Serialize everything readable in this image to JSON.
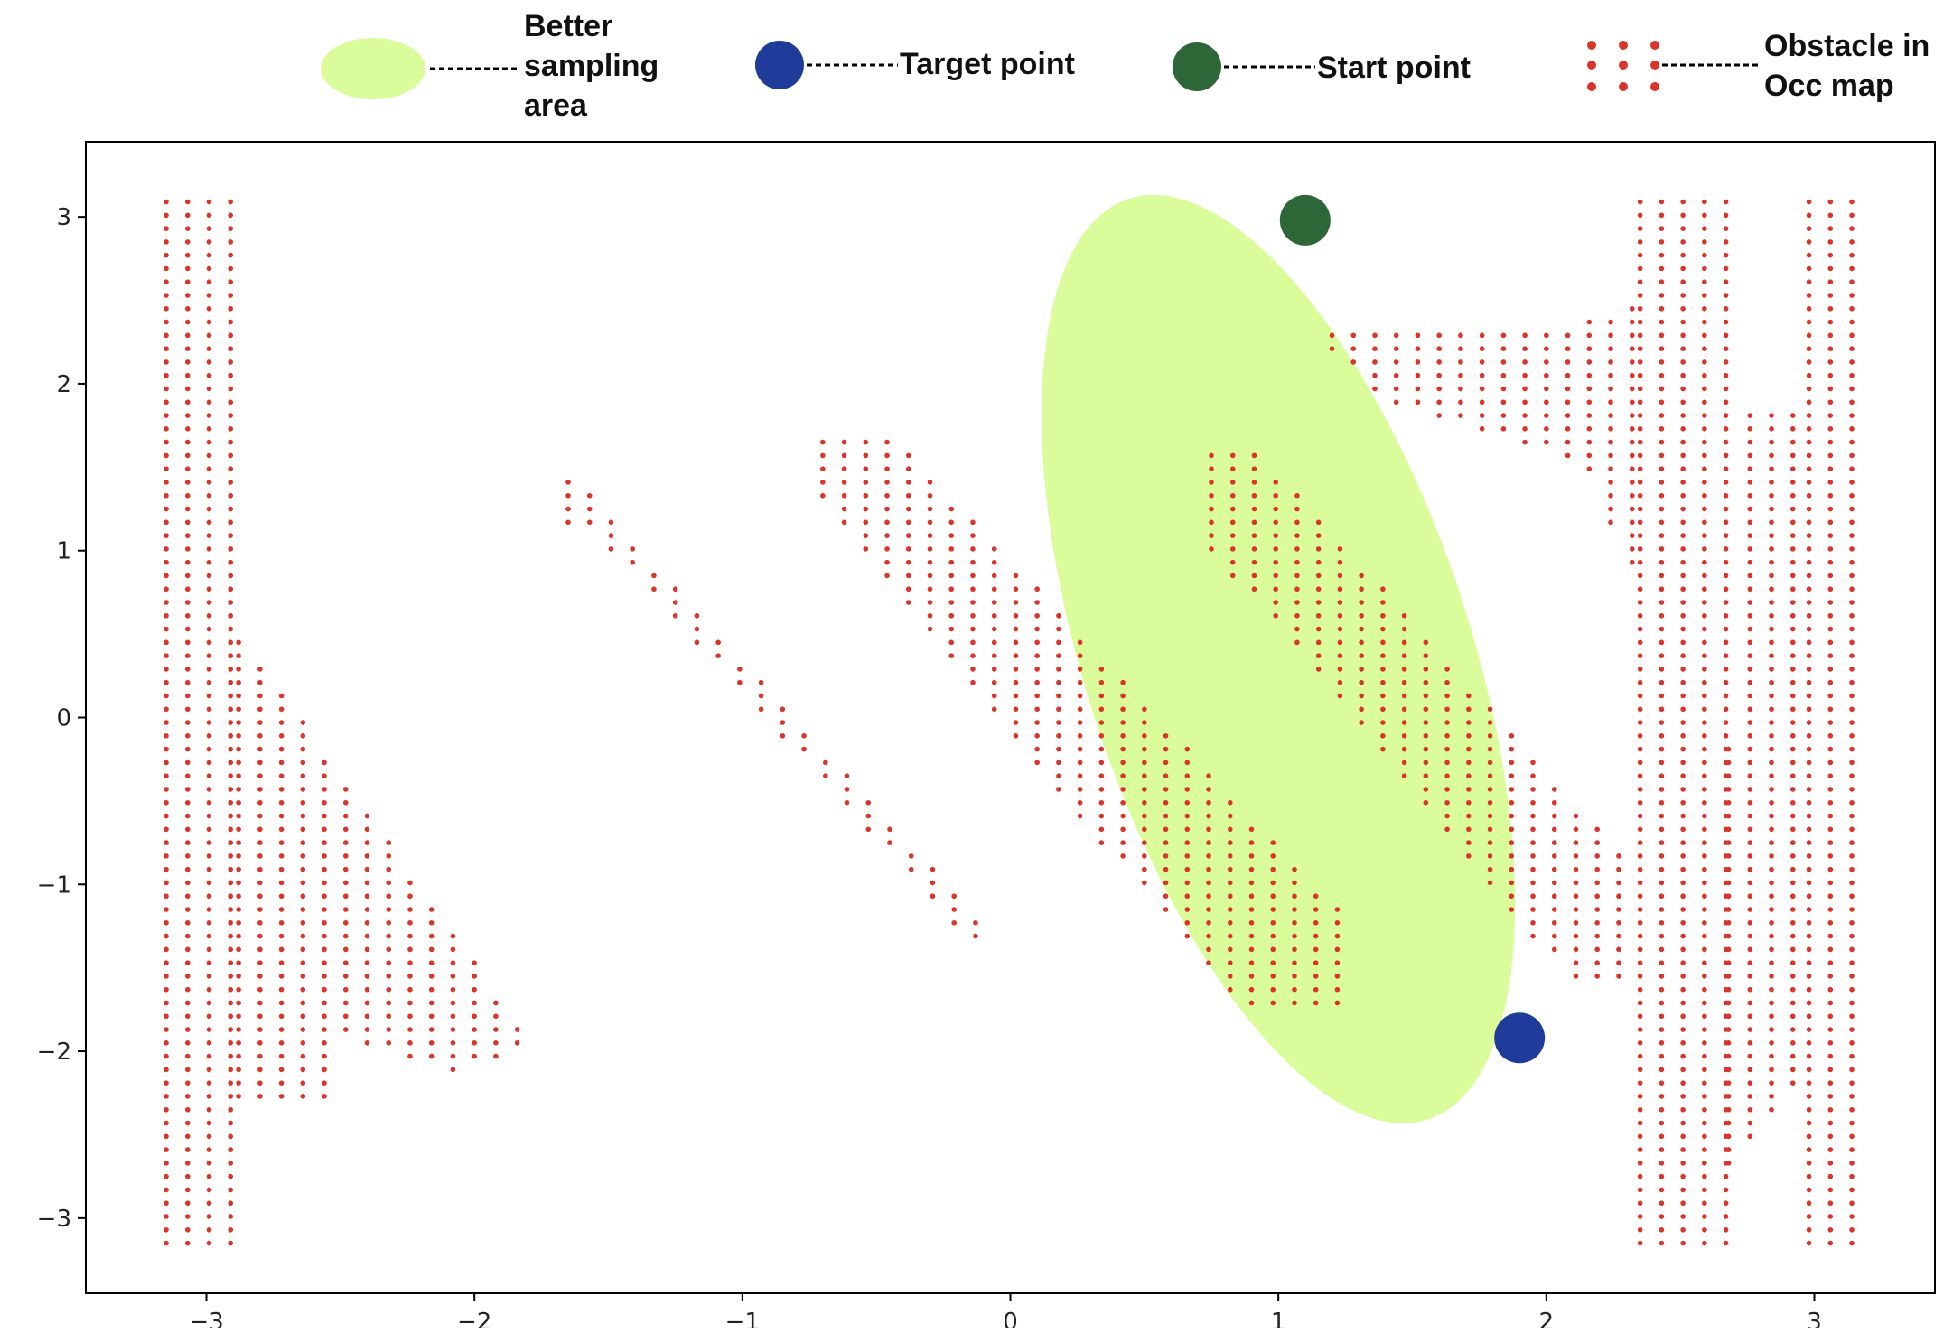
{
  "chart_data": {
    "type": "scatter",
    "title": "",
    "xlabel": "",
    "ylabel": "",
    "xlim": [
      -3.45,
      3.45
    ],
    "ylim": [
      -3.45,
      3.45
    ],
    "xticks": [
      -3,
      -2,
      -1,
      0,
      1,
      2,
      3
    ],
    "yticks": [
      -3,
      -2,
      -1,
      0,
      1,
      2,
      3
    ],
    "xtick_labels": [
      "−3",
      "−2",
      "−1",
      "0",
      "1",
      "2",
      "3"
    ],
    "ytick_labels": [
      "−3",
      "−2",
      "−1",
      "0",
      "1",
      "2",
      "3"
    ],
    "grid": false,
    "legend_position": "top",
    "legend": [
      {
        "label_lines": [
          "Better",
          "sampling",
          "area"
        ],
        "kind": "ellipse",
        "color": "#dbfc9a"
      },
      {
        "label_lines": [
          "Target point"
        ],
        "kind": "circle",
        "color": "#1f3c9b"
      },
      {
        "label_lines": [
          "Start point"
        ],
        "kind": "circle",
        "color": "#2d6637"
      },
      {
        "label_lines": [
          "Obstacle in",
          "Occ map"
        ],
        "kind": "dots",
        "color": "#d9352b"
      }
    ],
    "better_sampling_area": {
      "center": [
        1.0,
        0.35
      ],
      "semi_axes": [
        0.72,
        2.9
      ],
      "angle_deg_from_y_axis": 18,
      "color": "#dbfc9a"
    },
    "target_point": {
      "x": 1.9,
      "y": -1.92,
      "color": "#1f3c9b"
    },
    "start_point": {
      "x": 1.1,
      "y": 2.98,
      "color": "#2d6637"
    },
    "obstacle_style": {
      "color": "#d9352b",
      "grid_spacing": 0.08
    },
    "obstacles": [
      {
        "name": "left-wall",
        "x": [
          -3.15,
          -2.88
        ],
        "y_bottom": -3.15,
        "y_top": 3.15
      },
      {
        "name": "left-triangle",
        "x": [
          -2.88,
          -1.78
        ],
        "polygon": [
          [
            -2.88,
            0.52
          ],
          [
            -1.78,
            -1.95
          ],
          [
            -2.05,
            -2.13
          ],
          [
            -2.55,
            -1.92
          ],
          [
            -2.55,
            -2.28
          ],
          [
            -2.88,
            -2.28
          ]
        ]
      },
      {
        "name": "band-1",
        "x": [
          -1.65,
          -0.12
        ],
        "polygon": [
          [
            -1.65,
            1.48
          ],
          [
            -0.12,
            -1.2
          ],
          [
            -0.12,
            -1.4
          ],
          [
            -1.55,
            1.1
          ],
          [
            -1.65,
            1.1
          ]
        ]
      },
      {
        "name": "band-2",
        "x": [
          -0.7,
          1.25
        ],
        "polygon": [
          [
            -0.7,
            1.72
          ],
          [
            -0.45,
            1.72
          ],
          [
            1.25,
            -1.2
          ],
          [
            1.25,
            -1.75
          ],
          [
            0.85,
            -1.75
          ],
          [
            -0.7,
            1.28
          ]
        ]
      },
      {
        "name": "band-3",
        "x": [
          0.75,
          2.35
        ],
        "polygon": [
          [
            0.75,
            1.65
          ],
          [
            0.9,
            1.65
          ],
          [
            2.35,
            -0.95
          ],
          [
            2.35,
            -1.6
          ],
          [
            2.1,
            -1.6
          ],
          [
            0.75,
            1.0
          ]
        ]
      },
      {
        "name": "top-band",
        "x": [
          1.2,
          2.35
        ],
        "polygon": [
          [
            1.2,
            2.3
          ],
          [
            2.0,
            2.3
          ],
          [
            2.35,
            2.5
          ],
          [
            2.35,
            0.75
          ],
          [
            2.15,
            1.5
          ],
          [
            1.45,
            1.85
          ],
          [
            1.2,
            2.15
          ]
        ]
      },
      {
        "name": "right-wall-1",
        "x": [
          2.35,
          2.68
        ],
        "y_bottom": -3.15,
        "y_top": 3.15
      },
      {
        "name": "right-wedge",
        "x": [
          2.68,
          2.95
        ],
        "polygon": [
          [
            2.68,
            1.88
          ],
          [
            2.95,
            1.88
          ],
          [
            2.95,
            -2.2
          ],
          [
            2.68,
            -2.7
          ],
          [
            2.68,
            -0.15
          ],
          [
            2.75,
            0.0
          ]
        ]
      },
      {
        "name": "right-wall-2",
        "x": [
          2.98,
          3.15
        ],
        "y_bottom": -3.15,
        "y_top": 3.15
      }
    ]
  }
}
